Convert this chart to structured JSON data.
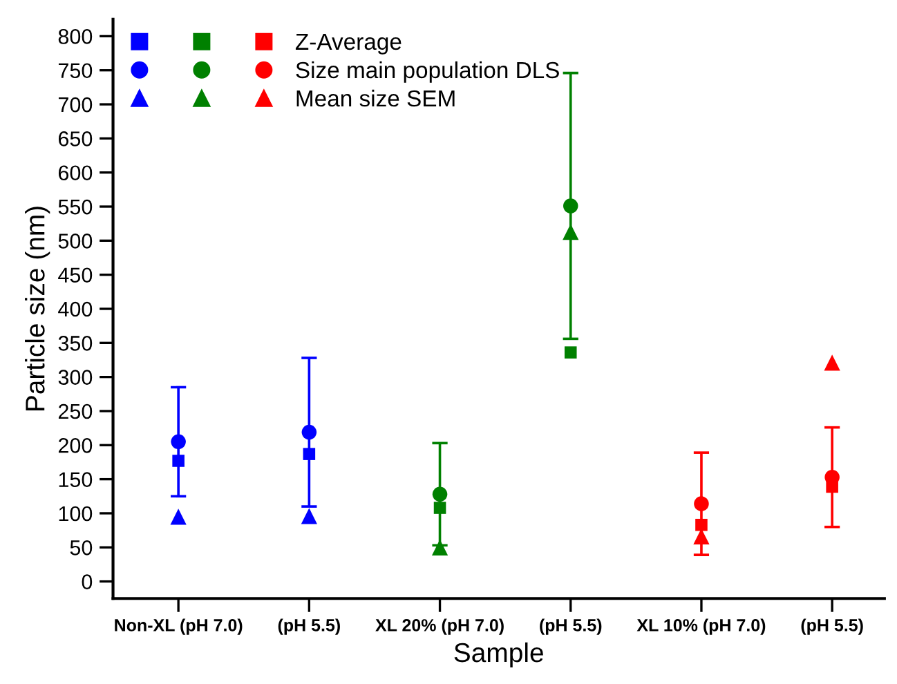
{
  "chart_data": {
    "type": "scatter",
    "xlabel": "Sample",
    "ylabel": "Particle size (nm)",
    "categories": [
      "Non-XL (pH 7.0)",
      "(pH 5.5)",
      "XL 20% (pH 7.0)",
      "(pH 5.5)",
      "XL 10% (pH 7.0)",
      "(pH 5.5)"
    ],
    "series": [
      {
        "name": "Z-Average",
        "marker": "square",
        "colors": [
          "#0000ff",
          "#0000ff",
          "#008000",
          "#008000",
          "#ff0000",
          "#ff0000"
        ],
        "values": [
          177,
          187,
          108,
          336,
          83,
          139
        ]
      },
      {
        "name": "Size main population DLS",
        "marker": "circle",
        "colors": [
          "#0000ff",
          "#0000ff",
          "#008000",
          "#008000",
          "#ff0000",
          "#ff0000"
        ],
        "values": [
          205,
          219,
          128,
          551,
          114,
          153
        ],
        "errors": [
          80,
          109,
          75,
          195,
          75,
          73
        ]
      },
      {
        "name": "Mean size SEM",
        "marker": "triangle",
        "colors": [
          "#0000ff",
          "#0000ff",
          "#008000",
          "#008000",
          "#ff0000",
          "#ff0000"
        ],
        "values": [
          95,
          96,
          50,
          513,
          66,
          321
        ]
      }
    ],
    "ylim": [
      -25,
      825
    ],
    "yticks": [
      0,
      50,
      100,
      150,
      200,
      250,
      300,
      350,
      400,
      450,
      500,
      550,
      600,
      650,
      700,
      750,
      800
    ],
    "grid": false,
    "legend": "top left"
  }
}
